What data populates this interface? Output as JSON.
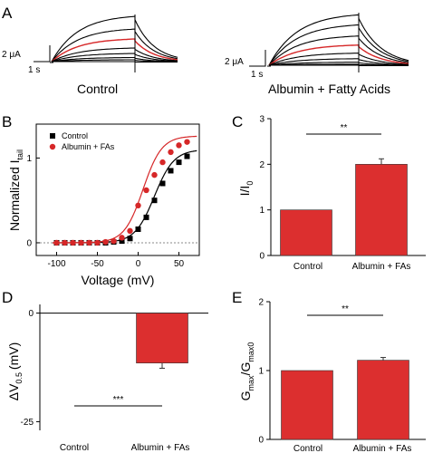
{
  "panels": {
    "a": {
      "label": "A"
    },
    "b": {
      "label": "B"
    },
    "c": {
      "label": "C"
    },
    "d": {
      "label": "D"
    },
    "e": {
      "label": "E"
    }
  },
  "traces": {
    "control": {
      "caption": "Control",
      "scale_current": "2 μA",
      "scale_time": "1 s",
      "red_color": "#d62728",
      "black_color": "#000000",
      "peaks": [
        1.0,
        0.72,
        0.5,
        0.3,
        0.18,
        0.09,
        0.04,
        0.0
      ],
      "red_index": 2
    },
    "fa": {
      "caption": "Albumin + Fatty Acids",
      "scale_current": "2 μA",
      "scale_time": "1 s",
      "peaks": [
        1.0,
        0.8,
        0.58,
        0.4,
        0.24,
        0.13,
        0.06,
        0.02,
        0.0
      ],
      "red_index": 3
    }
  },
  "chart_data": [
    {
      "type": "scatter",
      "panel": "B",
      "xlabel": "Voltage (mV)",
      "ylabel_main": "Normalized I",
      "ylabel_sub": "tail",
      "xlim": [
        -125,
        75
      ],
      "ylim": [
        -0.15,
        1.4
      ],
      "xticks": [
        -100,
        -50,
        0,
        50
      ],
      "yticks": [
        0,
        1
      ],
      "legend_position": "top-left",
      "series": [
        {
          "name": "Control",
          "color": "#000000",
          "marker": "square",
          "x": [
            -100,
            -90,
            -80,
            -70,
            -60,
            -50,
            -40,
            -30,
            -20,
            -10,
            0,
            10,
            20,
            30,
            40,
            50,
            60
          ],
          "y": [
            0.0,
            0.0,
            0.0,
            0.0,
            0.0,
            0.0,
            0.0,
            0.01,
            0.02,
            0.05,
            0.16,
            0.3,
            0.5,
            0.7,
            0.85,
            0.95,
            1.02
          ]
        },
        {
          "name": "Albumin + FAs",
          "color": "#d62728",
          "marker": "circle",
          "x": [
            -100,
            -90,
            -80,
            -70,
            -60,
            -50,
            -40,
            -30,
            -20,
            -10,
            0,
            10,
            20,
            30,
            40,
            50,
            60
          ],
          "y": [
            0.0,
            0.0,
            0.0,
            0.0,
            0.0,
            0.0,
            0.01,
            0.02,
            0.06,
            0.14,
            0.44,
            0.62,
            0.8,
            0.95,
            1.07,
            1.15,
            1.19
          ]
        }
      ],
      "fits": {
        "Control": {
          "v_half": 20,
          "slope": 12,
          "gmax": 1.1
        },
        "Albumin + FAs": {
          "v_half": 6,
          "slope": 11.5,
          "gmax": 1.26
        }
      }
    },
    {
      "type": "bar",
      "panel": "C",
      "ylabel": "I/I",
      "ylabel_sub": "0",
      "categories": [
        "Control",
        "Albumin + FAs"
      ],
      "values": [
        1.0,
        2.0
      ],
      "errors": [
        0.0,
        0.12
      ],
      "ylim": [
        0,
        3
      ],
      "yticks": [
        0,
        1,
        2,
        3
      ],
      "significance": "**",
      "color": "#dc2f2f"
    },
    {
      "type": "bar",
      "panel": "D",
      "ylabel": "ΔV",
      "ylabel_sub": "0.5",
      "ylabel_unit": "(mV)",
      "categories": [
        "Control",
        "Albumin + FAs"
      ],
      "values": [
        0,
        -11.5
      ],
      "errors": [
        0,
        1.2
      ],
      "ylim": [
        -27,
        2
      ],
      "yticks": [
        0,
        -25
      ],
      "significance": "***",
      "color": "#dc2f2f"
    },
    {
      "type": "bar",
      "panel": "E",
      "ylabel": "G",
      "ylabel_sub1": "max",
      "ylabel_mid": "/G",
      "ylabel_sub2": "max0",
      "categories": [
        "Control",
        "Albumin + FAs"
      ],
      "values": [
        1.0,
        1.15
      ],
      "errors": [
        0.0,
        0.04
      ],
      "ylim": [
        0,
        2
      ],
      "yticks": [
        0,
        1,
        2
      ],
      "significance": "**",
      "color": "#dc2f2f"
    }
  ]
}
